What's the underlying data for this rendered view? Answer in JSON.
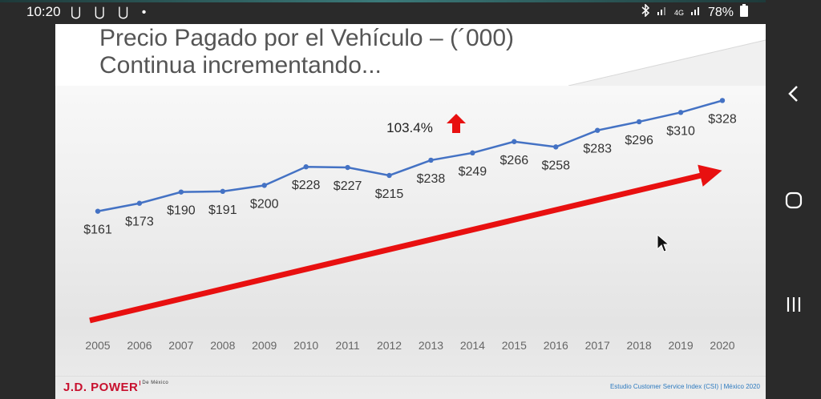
{
  "statusbar": {
    "time": "10:20",
    "left_icons": "⋃ ⋃ ⋃ •",
    "battery": "78%",
    "signal": "4G"
  },
  "slide": {
    "title_line1": "Precio Pagado por el Vehículo – (´000)",
    "title_line2": "Continua incrementando...",
    "logo_text": "J.D. POWER",
    "logo_sub": "De México",
    "footer_text": "Estudio Customer Service Index (CSI) | México 2020"
  },
  "icons": {
    "back": "chevron-left-icon",
    "home": "home-icon",
    "recents": "recents-icon",
    "cursor": "mouse-cursor-icon"
  },
  "colors": {
    "line": "#4472c4",
    "arrow": "#e81010",
    "accent_logo": "#c8102e"
  },
  "chart_data": {
    "type": "line",
    "title": "Precio Pagado por el Vehículo – (´000)",
    "subtitle": "Continua incrementando...",
    "categories": [
      "2005",
      "2006",
      "2007",
      "2008",
      "2009",
      "2010",
      "2011",
      "2012",
      "2013",
      "2014",
      "2015",
      "2016",
      "2017",
      "2018",
      "2019",
      "2020"
    ],
    "series": [
      {
        "values": [
          161,
          173,
          190,
          191,
          200,
          228,
          227,
          215,
          238,
          249,
          266,
          258,
          283,
          296,
          310,
          328
        ],
        "labels": [
          "$161",
          "$173",
          "$190",
          "$191",
          "$200",
          "$228",
          "$227",
          "$215",
          "$238",
          "$249",
          "$266",
          "$258",
          "$283",
          "$296",
          "$310",
          "$328"
        ]
      }
    ],
    "annotation": "103.4%",
    "grid": false,
    "legend": "none"
  }
}
